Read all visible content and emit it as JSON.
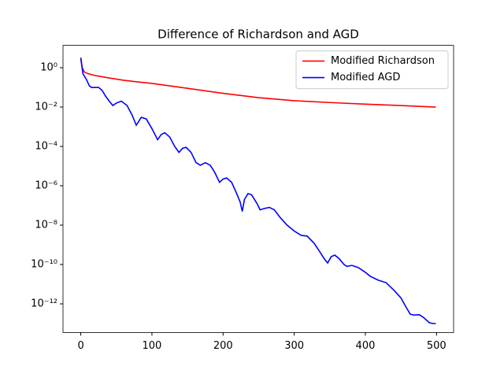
{
  "chart_data": {
    "type": "line",
    "title": "Difference of Richardson and AGD",
    "xlim": [
      -25,
      524
    ],
    "xticks": [
      0,
      100,
      200,
      300,
      400,
      500
    ],
    "ylim": [
      13.7,
      3.5e-14
    ],
    "log_y": true,
    "yticks": [
      {
        "value": 1,
        "label": "10⁰"
      },
      {
        "value": 0.01,
        "label": "10⁻²"
      },
      {
        "value": 0.0001,
        "label": "10⁻⁴"
      },
      {
        "value": 1e-06,
        "label": "10⁻⁶"
      },
      {
        "value": 1e-08,
        "label": "10⁻⁸"
      },
      {
        "value": 1e-10,
        "label": "10⁻¹⁰"
      },
      {
        "value": 1e-12,
        "label": "10⁻¹²"
      }
    ],
    "legend": "upper right",
    "series": [
      {
        "name": "Modified Richardson",
        "color": "#ff0000",
        "x": [
          0,
          2,
          5,
          10,
          20,
          40,
          60,
          80,
          100,
          150,
          200,
          250,
          300,
          350,
          400,
          450,
          499
        ],
        "values": [
          3.3,
          1,
          0.6,
          0.5,
          0.4,
          0.3,
          0.23,
          0.19,
          0.16,
          0.09,
          0.05,
          0.03,
          0.021,
          0.017,
          0.014,
          0.012,
          0.01
        ]
      },
      {
        "name": "Modified AGD",
        "color": "#0000ff",
        "x": [
          0,
          3,
          8,
          12,
          15,
          20,
          25,
          30,
          35,
          40,
          45,
          50,
          57,
          65,
          72,
          78,
          85,
          92,
          100,
          108,
          113,
          118,
          125,
          132,
          138,
          143,
          148,
          155,
          162,
          168,
          175,
          182,
          188,
          195,
          200,
          205,
          212,
          218,
          224,
          227,
          230,
          235,
          240,
          248,
          252,
          258,
          265,
          272,
          280,
          290,
          300,
          310,
          318,
          328,
          335,
          342,
          347,
          352,
          357,
          363,
          370,
          374,
          381,
          390,
          400,
          407,
          418,
          429,
          440,
          450,
          457,
          463,
          468,
          476,
          482,
          490,
          495,
          499
        ],
        "values": [
          3,
          0.5,
          0.25,
          0.12,
          0.1,
          0.1,
          0.1,
          0.07,
          0.035,
          0.02,
          0.012,
          0.016,
          0.02,
          0.012,
          0.004,
          0.0012,
          0.003,
          0.0025,
          0.0008,
          0.00022,
          0.0004,
          0.0005,
          0.0003,
          0.0001,
          5e-05,
          8e-05,
          9e-05,
          5e-05,
          1.5e-05,
          1.1e-05,
          1.5e-05,
          1.1e-05,
          5e-06,
          1.5e-06,
          2.2e-06,
          2.5e-06,
          1.5e-06,
          5e-07,
          1.5e-07,
          5e-08,
          2e-07,
          4e-07,
          3.5e-07,
          1.2e-07,
          6e-08,
          7e-08,
          8e-08,
          6e-08,
          2.5e-08,
          1e-08,
          5e-09,
          3e-09,
          2.8e-09,
          1.2e-09,
          5e-10,
          2e-10,
          1.2e-10,
          2.5e-10,
          3e-10,
          2e-10,
          1e-10,
          8e-11,
          9e-11,
          7e-11,
          4e-11,
          2.5e-11,
          1.6e-11,
          1.2e-11,
          5e-12,
          2e-12,
          7e-13,
          3e-13,
          2.7e-13,
          2.8e-13,
          2e-13,
          1.1e-13,
          1e-13,
          1e-13
        ]
      }
    ]
  }
}
